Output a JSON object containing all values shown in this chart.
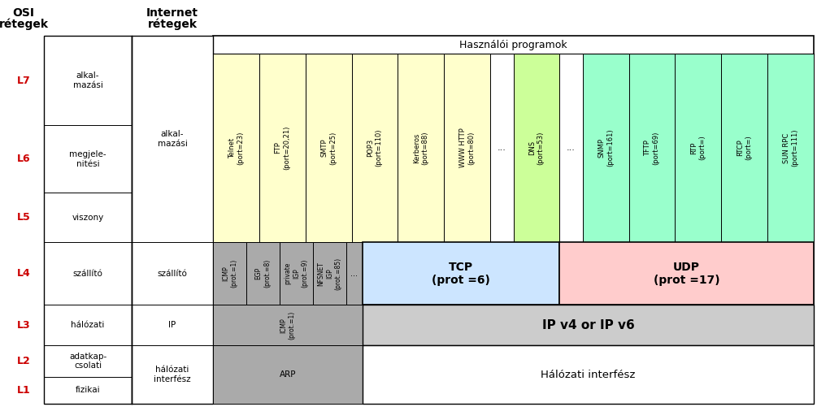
{
  "fig_width": 10.05,
  "fig_height": 5.01,
  "colors": {
    "yellow_app": "#FFFFCC",
    "green_udp_app": "#99FFCC",
    "blue_tcp": "#CCE5FF",
    "pink_udp": "#FFCCCC",
    "gray_proto": "#AAAAAA",
    "light_gray_ip": "#CCCCCC",
    "white": "#FFFFFF",
    "black": "#000000",
    "red": "#CC0000",
    "dns_color": "#CCFF99"
  },
  "tcp_apps": [
    "Telnet\n(port=23)",
    "FTP\n(port=20,21)",
    "SMTP\n(port=25)",
    "POP3\n(port=110)",
    "Kerberos\n(port=88)",
    "WWW HTTP\n(port=80)"
  ],
  "udp_apps": [
    "SNMP\n(port=161)",
    "TFTP\n(port=69)",
    "RTP\n(port=)",
    "RTCP\n(port=)",
    "SUN RPC\n(port=111)"
  ],
  "ip_protos": [
    "ICMP\n(prot.=1)",
    "EGP\n(prot.=8)",
    "private\nIGP\n(prot.=9)",
    "NFSNET\nIGP\n(prot.=85)"
  ],
  "layer_labels": [
    "L1",
    "L2",
    "L3",
    "L4",
    "L5",
    "L6",
    "L7"
  ],
  "layer_names": [
    "fizikai",
    "adatkap-\ncsolati",
    "hálózati",
    "szállító",
    "viszony",
    "megjele-\nnitési",
    "alkal-\nmazási"
  ],
  "inet_names": [
    "hálózati\ninterfész",
    "IP",
    "szállító",
    "alkal-\nmazási"
  ]
}
